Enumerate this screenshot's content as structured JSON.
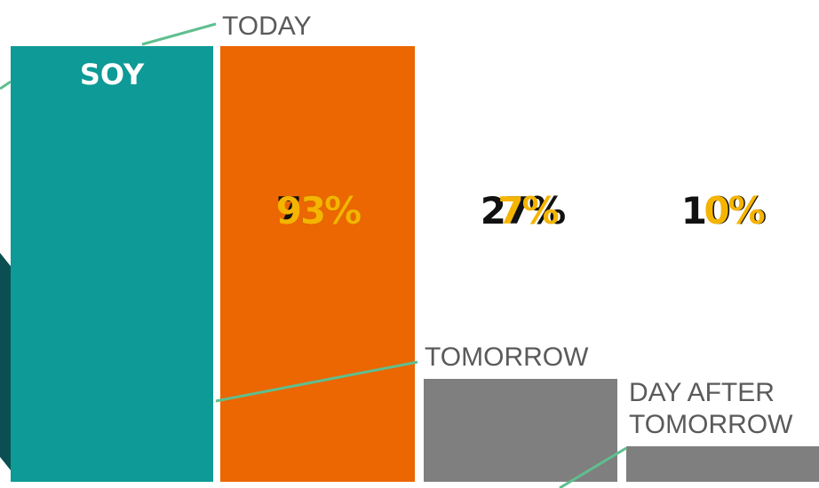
{
  "brand": "SOY",
  "labels": {
    "today": "TODAY",
    "tomorrow": "TOMORROW",
    "day_after": [
      "DAY AFTER",
      "TOMORROW"
    ]
  },
  "percents": [
    {
      "back": "73%",
      "front": "93%"
    },
    {
      "back": "27%",
      "front": "7%"
    },
    {
      "back": "10%",
      "front": "0%"
    }
  ]
}
